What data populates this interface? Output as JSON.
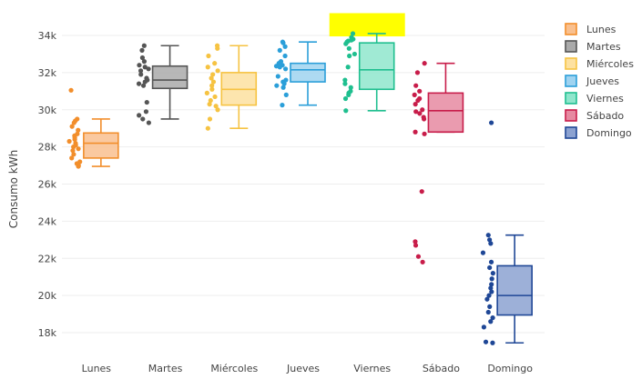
{
  "chart_data": {
    "type": "box",
    "ylabel": "Consumo kWh",
    "ylim": [
      16800,
      34800
    ],
    "yticks": [
      18000,
      20000,
      22000,
      24000,
      26000,
      28000,
      30000,
      32000,
      34000
    ],
    "ytick_labels": [
      "18k",
      "20k",
      "22k",
      "24k",
      "26k",
      "28k",
      "30k",
      "32k",
      "34k"
    ],
    "grid": true,
    "legend_position": "top-right",
    "highlight": {
      "category": "Viernes",
      "y_range": [
        33950,
        35200
      ],
      "color": "#ffff00"
    },
    "categories": [
      "Lunes",
      "Martes",
      "Miércoles",
      "Jueves",
      "Viernes",
      "Sábado",
      "Domingo"
    ],
    "series": [
      {
        "name": "Lunes",
        "color": "#f28e2b",
        "fill": "#f9c08f",
        "min": 26950,
        "q1": 27400,
        "median": 28200,
        "q3": 28750,
        "max": 29500,
        "points": [
          31050,
          29500,
          29400,
          29300,
          29100,
          28900,
          28700,
          28600,
          28500,
          28400,
          28300,
          28200,
          28100,
          28000,
          27900,
          27800,
          27600,
          27400,
          27200,
          27100,
          27000,
          26950
        ]
      },
      {
        "name": "Martes",
        "color": "#555555",
        "fill": "#aaaaaa",
        "min": 29500,
        "q1": 31150,
        "median": 31600,
        "q3": 32350,
        "max": 33450,
        "points": [
          33450,
          33200,
          32800,
          32600,
          32400,
          32300,
          32200,
          32100,
          31900,
          31700,
          31600,
          31500,
          31400,
          31300,
          30400,
          29900,
          29700,
          29500,
          29300
        ]
      },
      {
        "name": "Miércoles",
        "color": "#f6c342",
        "fill": "#fde1a0",
        "min": 29000,
        "q1": 30250,
        "median": 31100,
        "q3": 32000,
        "max": 33450,
        "points": [
          33450,
          33300,
          32900,
          32500,
          32300,
          32100,
          31900,
          31700,
          31500,
          31300,
          31100,
          30900,
          30700,
          30500,
          30300,
          30200,
          30000,
          29500,
          29000
        ]
      },
      {
        "name": "Jueves",
        "color": "#2b9fd9",
        "fill": "#9fd3f0",
        "min": 30250,
        "q1": 31500,
        "median": 32150,
        "q3": 32500,
        "max": 33650,
        "points": [
          33650,
          33600,
          33400,
          33200,
          32900,
          32600,
          32500,
          32400,
          32350,
          32300,
          32200,
          31800,
          31600,
          31500,
          31400,
          31300,
          31200,
          30800,
          30250
        ]
      },
      {
        "name": "Viernes",
        "color": "#1fbf8f",
        "fill": "#8fe6cc",
        "min": 29950,
        "q1": 31100,
        "median": 32150,
        "q3": 33600,
        "max": 34100,
        "points": [
          34100,
          33900,
          33800,
          33750,
          33700,
          33650,
          33550,
          33300,
          33000,
          32900,
          32300,
          31600,
          31400,
          31200,
          31000,
          30900,
          30800,
          30600,
          29950
        ]
      },
      {
        "name": "Sábado",
        "color": "#c81d4a",
        "fill": "#e68aa1",
        "min": 28800,
        "q1": 28800,
        "median": 29950,
        "q3": 30900,
        "max": 32500,
        "points": [
          32500,
          32000,
          31300,
          31000,
          30800,
          30600,
          30500,
          30300,
          30000,
          29900,
          29800,
          29600,
          29500,
          28800,
          28700,
          25600,
          22900,
          22700,
          22100,
          21800
        ]
      },
      {
        "name": "Domingo",
        "color": "#1f4796",
        "fill": "#8ca2d1",
        "min": 17450,
        "q1": 18950,
        "median": 20000,
        "q3": 21600,
        "max": 23250,
        "points": [
          29300,
          23250,
          23000,
          22800,
          22300,
          21800,
          21500,
          21200,
          20900,
          20600,
          20400,
          20200,
          20000,
          19800,
          19400,
          19100,
          18800,
          18600,
          18300,
          17500,
          17450
        ]
      }
    ]
  }
}
